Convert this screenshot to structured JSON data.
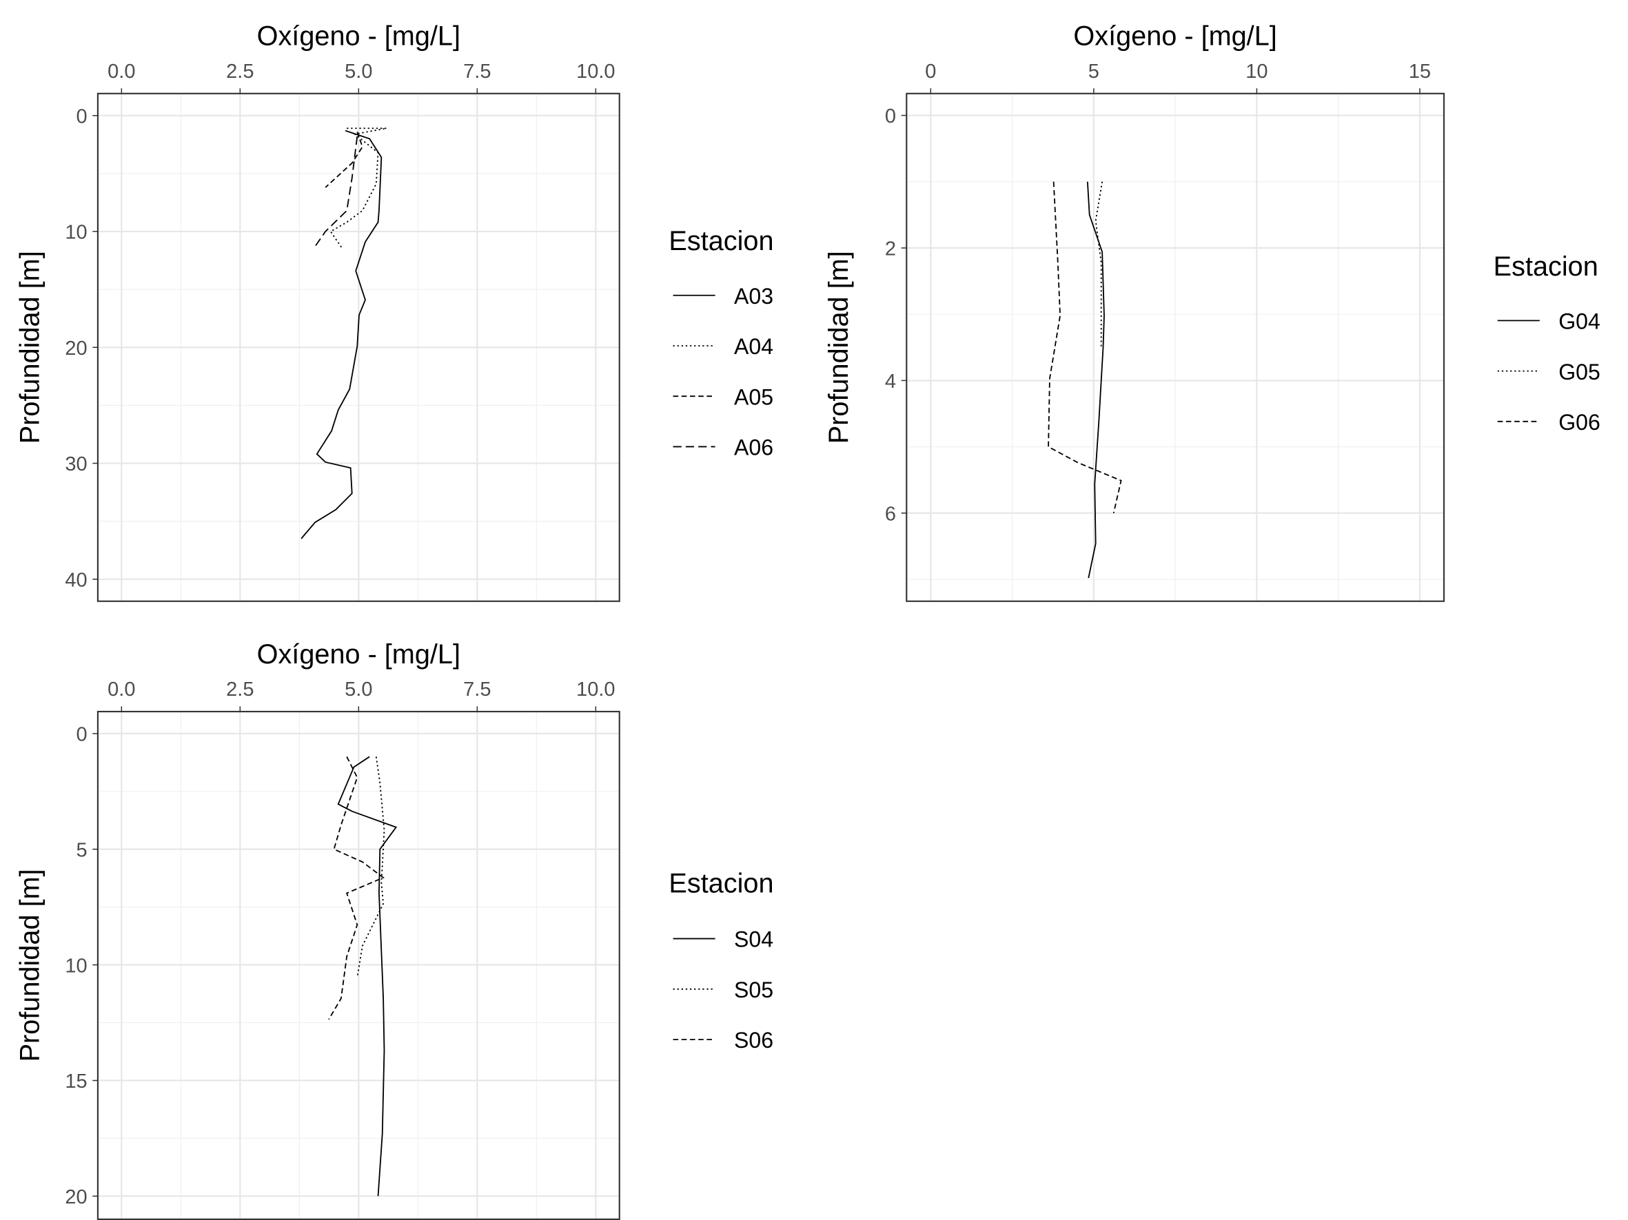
{
  "chart_data": [
    {
      "type": "line",
      "xlabel": "Oxígeno - [mg/L]",
      "ylabel": "Profundidad [m]",
      "legend_title": "Estacion",
      "xlim": [
        -0.5,
        10.5
      ],
      "ylim": [
        -1.9,
        41.9
      ],
      "y_reversed": true,
      "x_axis_top": true,
      "grid": true,
      "xticks": [
        {
          "value": 0,
          "label": "0.0"
        },
        2.5,
        {
          "value": 5,
          "label": "5.0"
        },
        7.5,
        {
          "value": 10,
          "label": "10.0"
        }
      ],
      "yticks": [
        0,
        10,
        20,
        30,
        40
      ],
      "xminor": [
        1.25,
        3.75,
        6.25,
        8.75
      ],
      "yminor": [
        5,
        15,
        25,
        35
      ],
      "series": [
        {
          "name": "A03",
          "color": "#000000",
          "dash": "solid",
          "x": [
            4.72,
            5.23,
            5.48,
            5.43,
            5.41,
            5.14,
            4.94,
            5.14,
            5.01,
            4.97,
            4.81,
            4.57,
            4.43,
            4.12,
            4.3,
            4.83,
            4.86,
            4.52,
            4.08,
            3.79
          ],
          "values": [
            1.3,
            2.0,
            3.6,
            8.2,
            9.2,
            10.9,
            13.4,
            15.9,
            17.2,
            19.9,
            23.6,
            25.4,
            27.2,
            29.2,
            29.9,
            30.4,
            32.6,
            34.0,
            35.1,
            36.5
          ]
        },
        {
          "name": "A04",
          "color": "#000000",
          "dash": "dotted",
          "x": [
            4.75,
            5.59,
            4.92,
            5.41,
            5.37,
            5.08,
            4.75,
            4.41,
            4.66
          ],
          "values": [
            1.1,
            1.1,
            1.6,
            3.2,
            5.9,
            8.2,
            9.2,
            10.0,
            11.5
          ]
        },
        {
          "name": "A05",
          "color": "#000000",
          "dash": "dashed",
          "x": [
            4.97,
            5.08,
            4.86,
            4.3
          ],
          "values": [
            1.4,
            2.7,
            4.1,
            6.2
          ]
        },
        {
          "name": "A06",
          "color": "#000000",
          "dash": "longdash",
          "x": [
            4.97,
            4.86,
            4.75,
            4.3,
            4.08
          ],
          "values": [
            1.8,
            5.4,
            8.2,
            10.0,
            11.3
          ]
        }
      ]
    },
    {
      "type": "line",
      "xlabel": "Oxígeno - [mg/L]",
      "ylabel": "Profundidad [m]",
      "legend_title": "Estacion",
      "xlim": [
        -0.74,
        15.74
      ],
      "ylim": [
        -0.33,
        7.33
      ],
      "y_reversed": true,
      "x_axis_top": true,
      "grid": true,
      "xticks": [
        0,
        5,
        10,
        15
      ],
      "yticks": [
        0,
        2,
        4,
        6
      ],
      "xminor": [
        2.5,
        7.5,
        12.5
      ],
      "yminor": [
        1,
        3,
        5,
        7
      ],
      "series": [
        {
          "name": "G04",
          "color": "#000000",
          "dash": "solid",
          "x": [
            4.81,
            4.87,
            5.26,
            5.32,
            5.29,
            5.16,
            5.03,
            5.06,
            4.84
          ],
          "values": [
            1.0,
            1.5,
            2.06,
            3.02,
            3.49,
            4.6,
            5.56,
            6.46,
            6.98
          ]
        },
        {
          "name": "G05",
          "color": "#000000",
          "dash": "dotted",
          "x": [
            5.26,
            5.06,
            5.23,
            5.23
          ],
          "values": [
            1.0,
            1.59,
            2.22,
            3.49
          ]
        },
        {
          "name": "G06",
          "color": "#000000",
          "dash": "dashed",
          "x": [
            3.77,
            3.9,
            3.97,
            3.65,
            3.61,
            4.52,
            5.84,
            5.61
          ],
          "values": [
            1.0,
            2.22,
            3.02,
            3.97,
            5.0,
            5.24,
            5.51,
            6.0
          ]
        }
      ]
    },
    {
      "type": "line",
      "xlabel": "Oxígeno - [mg/L]",
      "ylabel": "Profundidad [m]",
      "legend_title": "Estacion",
      "xlim": [
        -0.5,
        10.5
      ],
      "ylim": [
        -0.95,
        21.0
      ],
      "y_reversed": true,
      "x_axis_top": true,
      "grid": true,
      "xticks": [
        {
          "value": 0,
          "label": "0.0"
        },
        2.5,
        {
          "value": 5,
          "label": "5.0"
        },
        7.5,
        {
          "value": 10,
          "label": "10.0"
        }
      ],
      "yticks": [
        0,
        5,
        10,
        15,
        20
      ],
      "xminor": [
        1.25,
        3.75,
        6.25,
        8.75
      ],
      "yminor": [
        2.5,
        7.5,
        12.5,
        17.5
      ],
      "series": [
        {
          "name": "S04",
          "color": "#000000",
          "dash": "solid",
          "x": [
            5.23,
            4.9,
            4.57,
            4.86,
            5.79,
            5.45,
            5.43,
            5.52,
            5.54,
            5.5,
            5.41
          ],
          "values": [
            1.0,
            1.45,
            3.05,
            3.36,
            4.05,
            5.0,
            6.9,
            11.45,
            13.7,
            17.3,
            20.0
          ]
        },
        {
          "name": "S05",
          "color": "#000000",
          "dash": "dotted",
          "x": [
            5.37,
            5.45,
            5.54,
            5.48,
            5.52,
            5.3,
            5.08,
            4.97
          ],
          "values": [
            1.0,
            2.14,
            4.18,
            6.45,
            7.36,
            8.27,
            9.18,
            10.55
          ]
        },
        {
          "name": "S06",
          "color": "#000000",
          "dash": "dashed",
          "x": [
            4.75,
            4.97,
            4.63,
            4.48,
            5.08,
            5.52,
            4.75,
            4.97,
            4.75,
            4.63,
            4.37
          ],
          "values": [
            1.0,
            1.9,
            3.95,
            5.0,
            5.55,
            6.23,
            6.9,
            8.27,
            9.64,
            11.45,
            12.36
          ]
        }
      ]
    }
  ]
}
